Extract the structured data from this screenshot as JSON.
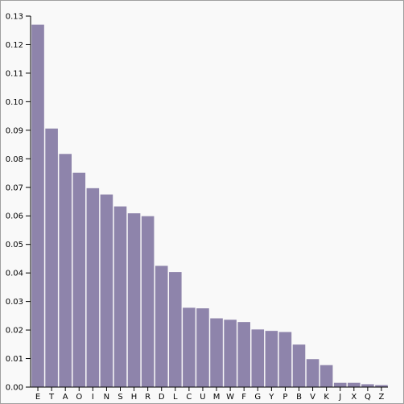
{
  "chart_data": {
    "type": "bar",
    "categories": [
      "E",
      "T",
      "A",
      "O",
      "I",
      "N",
      "S",
      "H",
      "R",
      "D",
      "L",
      "C",
      "U",
      "M",
      "W",
      "F",
      "G",
      "Y",
      "P",
      "B",
      "V",
      "K",
      "J",
      "X",
      "Q",
      "Z"
    ],
    "values": [
      0.127,
      0.0906,
      0.0817,
      0.0751,
      0.0697,
      0.0675,
      0.0633,
      0.0609,
      0.0599,
      0.0425,
      0.0403,
      0.0278,
      0.0276,
      0.0241,
      0.0236,
      0.0228,
      0.0202,
      0.0197,
      0.0193,
      0.0149,
      0.0098,
      0.0077,
      0.0015,
      0.0015,
      0.001,
      0.0007
    ],
    "title": "",
    "xlabel": "",
    "ylabel": "",
    "ylim": [
      0,
      0.13
    ],
    "yticks": [
      "0.00",
      "0.01",
      "0.02",
      "0.03",
      "0.04",
      "0.05",
      "0.06",
      "0.07",
      "0.08",
      "0.09",
      "0.10",
      "0.11",
      "0.12",
      "0.13"
    ],
    "bar_color": "#8e84ab",
    "grid": false
  }
}
